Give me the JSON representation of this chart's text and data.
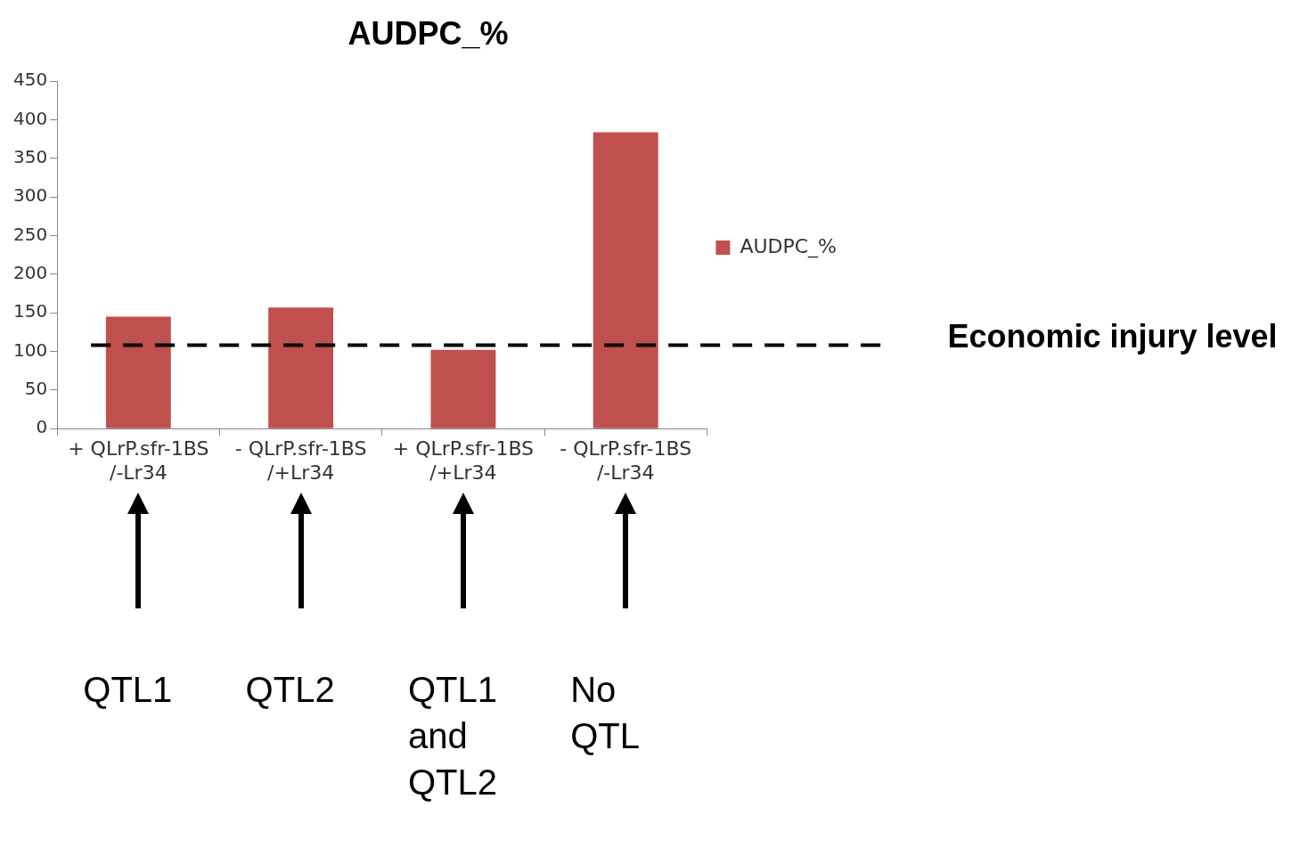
{
  "chart_data": {
    "type": "bar",
    "title": "AUDPC_%",
    "categories": [
      "+ QLrP.sfr-1BS\n/-Lr34",
      "- QLrP.sfr-1BS\n/+Lr34",
      "+ QLrP.sfr-1BS\n/+Lr34",
      "- QLrP.sfr-1BS\n/-Lr34"
    ],
    "series": [
      {
        "name": "AUDPC_%",
        "color": "#c0504d",
        "values": [
          145,
          157,
          102,
          384
        ]
      }
    ],
    "ylim": [
      0,
      450
    ],
    "yticks": [
      0,
      50,
      100,
      150,
      200,
      250,
      300,
      350,
      400,
      450
    ],
    "grid": false,
    "legend": "right",
    "ref_lines": [
      {
        "axis": "y",
        "value": 108,
        "label": "Economic injury level",
        "color": "#000000",
        "line_style": "dashed"
      }
    ],
    "annotations": [
      "QTL1",
      "QTL2",
      "QTL1 and QTL2",
      "No QTL"
    ]
  }
}
